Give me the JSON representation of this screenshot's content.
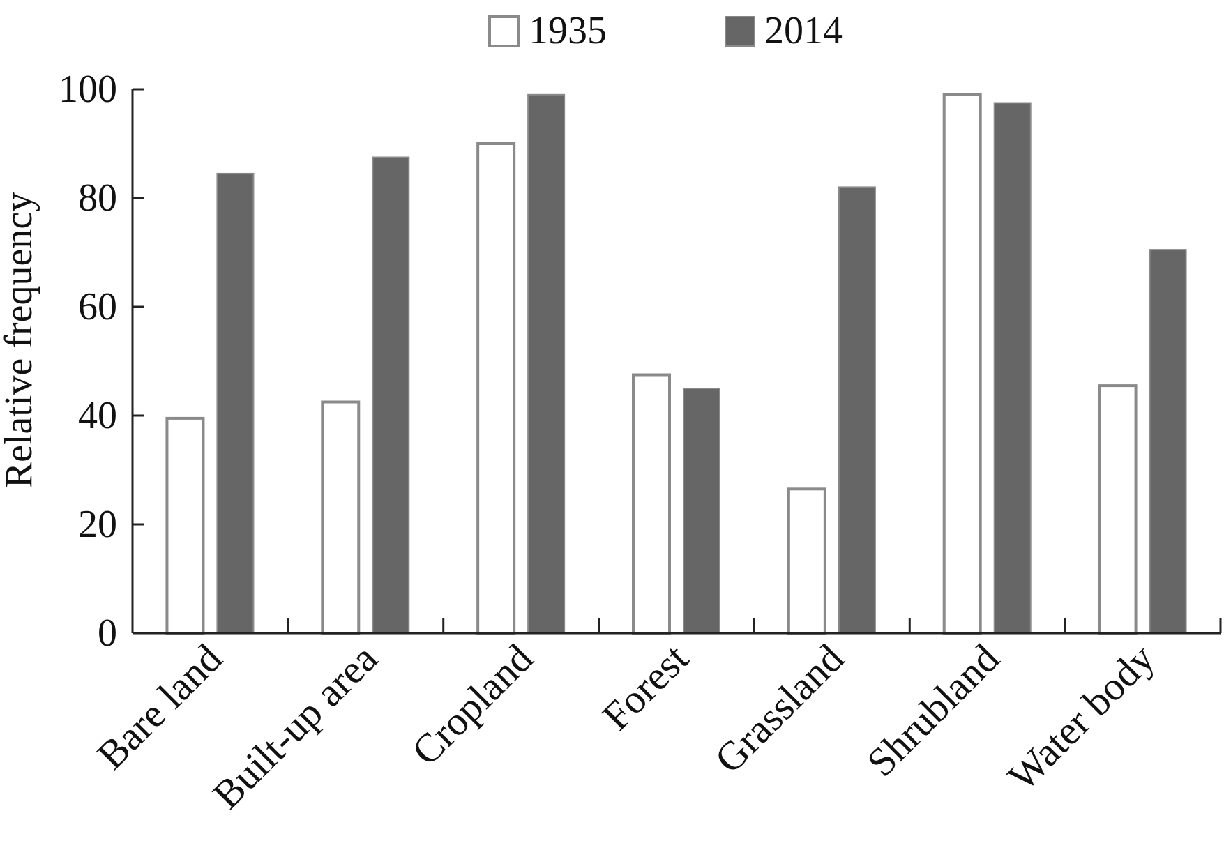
{
  "chart_data": {
    "type": "bar",
    "title": "",
    "xlabel": "",
    "ylabel": "Relative frequency",
    "ylim": [
      0,
      100
    ],
    "yticks": [
      "0",
      "20",
      "40",
      "60",
      "80",
      "100"
    ],
    "grid": false,
    "legend_position": "top-center",
    "categories": [
      "Bare land",
      "Built-up area",
      "Cropland",
      "Forest",
      "Grassland",
      "Shrubland",
      "Water body"
    ],
    "series": [
      {
        "name": "1935",
        "color": "#ffffff",
        "edge_color": "#8a8a8a",
        "values": [
          39.5,
          42.5,
          90,
          47.5,
          26.5,
          99,
          45.5
        ]
      },
      {
        "name": "2014",
        "color": "#666666",
        "edge_color": "#8a8a8a",
        "values": [
          84.5,
          87.5,
          99,
          45,
          82,
          97.5,
          70.5
        ]
      }
    ]
  }
}
